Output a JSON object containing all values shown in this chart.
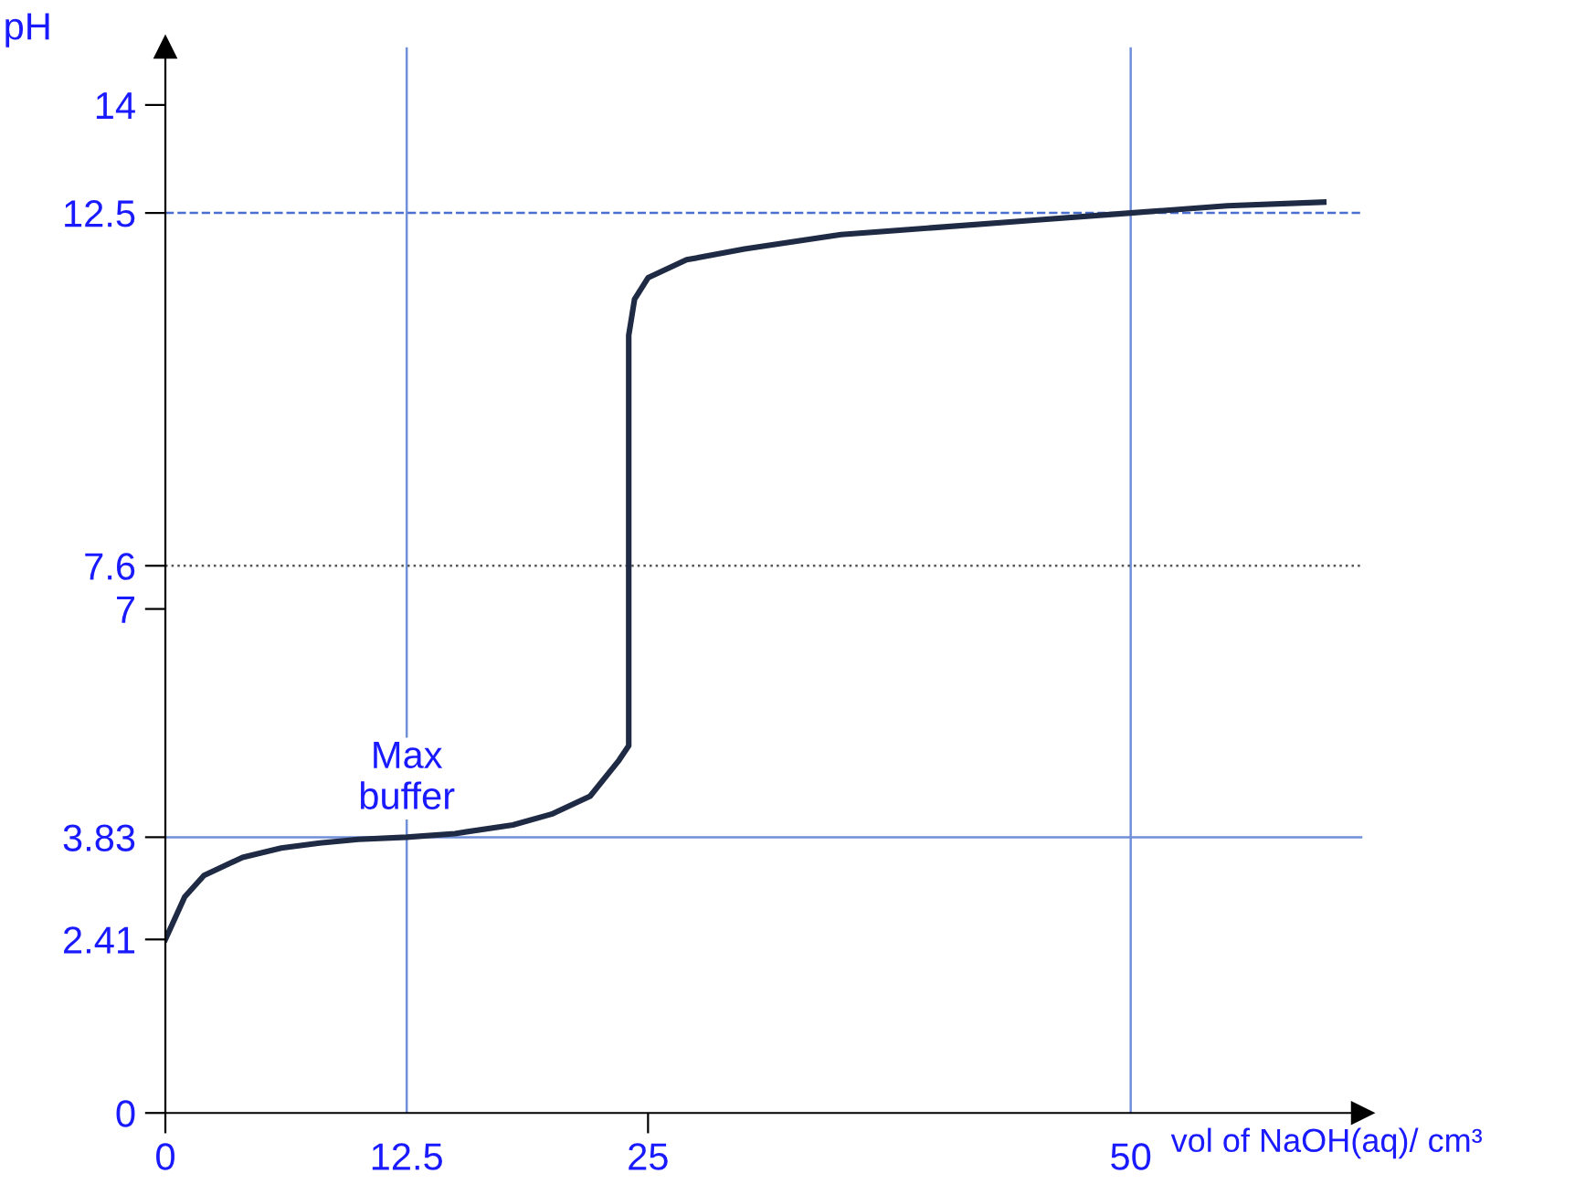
{
  "chart_data": {
    "type": "line",
    "xlabel": "vol of NaOH(aq)/ cm³",
    "ylabel": "pH",
    "x": [
      0,
      1,
      2,
      4,
      6,
      8,
      10,
      12.5,
      15,
      18,
      20,
      22,
      23.5,
      24,
      24,
      24.3,
      25,
      27,
      30,
      35,
      40,
      45,
      50,
      55,
      60
    ],
    "series": [
      {
        "color": "#1f2a44",
        "values": [
          2.41,
          3.0,
          3.3,
          3.55,
          3.68,
          3.75,
          3.8,
          3.83,
          3.88,
          4.0,
          4.15,
          4.4,
          4.9,
          5.1,
          10.8,
          11.3,
          11.6,
          11.85,
          12.0,
          12.2,
          12.3,
          12.4,
          12.5,
          12.6,
          12.65
        ]
      }
    ],
    "xlim": [
      0,
      62
    ],
    "ylim": [
      0,
      14.8
    ],
    "xticks": [
      0,
      12.5,
      25,
      50
    ],
    "yticks": [
      0,
      2.41,
      3.83,
      7,
      7.6,
      12.5,
      14
    ],
    "ref_lines": [
      {
        "axis": "y",
        "value": 12.5,
        "color": "#4a6fd0",
        "line_style": "dashed"
      },
      {
        "axis": "x",
        "value": 50,
        "color": "#6f8fd8",
        "line_style": "solid"
      },
      {
        "axis": "y",
        "value": 3.83,
        "color": "#6f8fd8",
        "line_style": "solid"
      },
      {
        "axis": "x",
        "value": 12.5,
        "color": "#6f8fd8",
        "line_style": "solid"
      },
      {
        "axis": "y",
        "value": 7.6,
        "color": "#555555",
        "line_style": "dotted"
      }
    ],
    "annotations": [
      {
        "text": "Max\nbuffer",
        "x": 12.5,
        "y": 3.83
      }
    ],
    "grid": false,
    "legend": false,
    "marker": "none",
    "line_style": "solid"
  }
}
